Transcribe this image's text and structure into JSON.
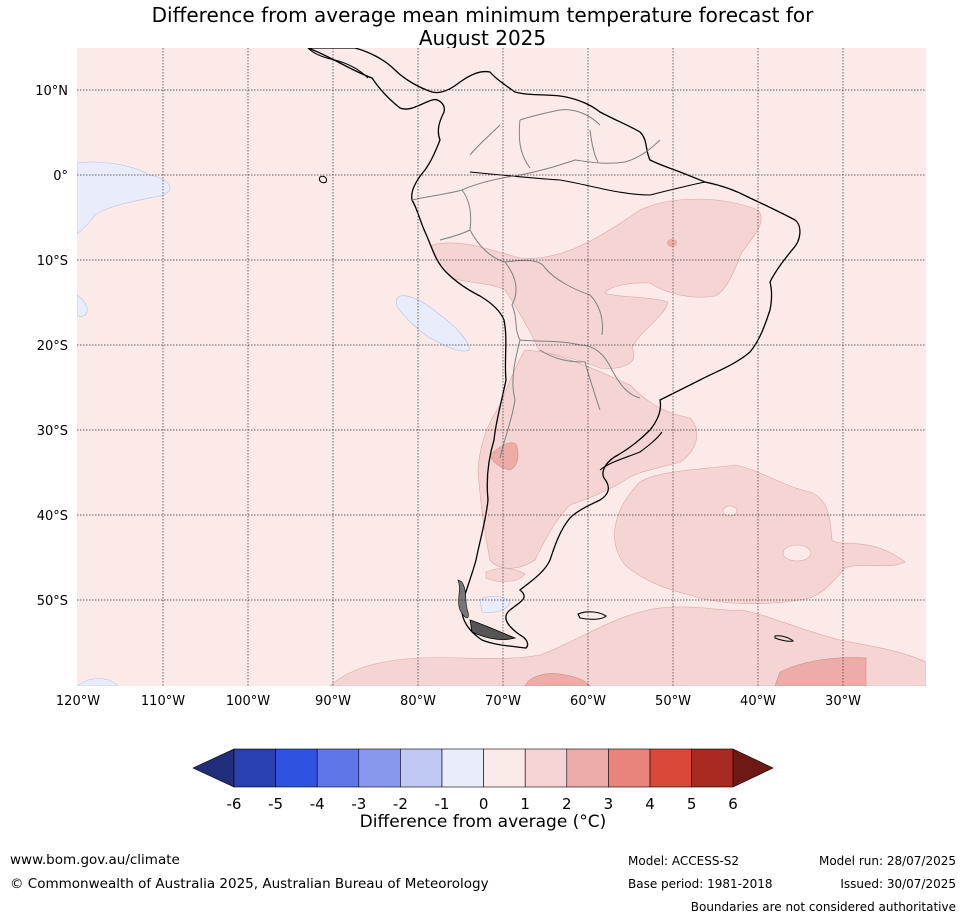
{
  "title": {
    "line1": "Difference from average mean minimum temperature forecast for",
    "line2": "August 2025"
  },
  "map": {
    "lat_labels": [
      "10°N",
      "0°",
      "10°S",
      "20°S",
      "30°S",
      "40°S",
      "50°S"
    ],
    "lon_labels": [
      "120°W",
      "110°W",
      "100°W",
      "90°W",
      "80°W",
      "70°W",
      "60°W",
      "50°W",
      "40°W",
      "30°W"
    ],
    "background_color": "#fbeae8",
    "land_outline_color": "#000000",
    "border_color": "#808080"
  },
  "colorbar": {
    "ticks": [
      "-6",
      "-5",
      "-4",
      "-3",
      "-2",
      "-1",
      "0",
      "1",
      "2",
      "3",
      "4",
      "5",
      "6"
    ],
    "colors": [
      "#1f2e7a",
      "#2a3fb0",
      "#3052e0",
      "#5f76e6",
      "#8898ee",
      "#c0c8f4",
      "#e8ecfb",
      "#fbeae8",
      "#f5d5d3",
      "#edaca8",
      "#e8847c",
      "#d9483b",
      "#a82a20",
      "#6e1a14"
    ],
    "label": "Difference from average (°C)"
  },
  "footer": {
    "website": "www.bom.gov.au/climate",
    "copyright": "© Commonwealth of Australia 2025, Australian Bureau of Meteorology",
    "model": "Model: ACCESS-S2",
    "base_period": "Base period: 1981-2018",
    "model_run": "Model run: 28/07/2025",
    "issued": "Issued: 30/07/2025",
    "disclaimer": "Boundaries are not considered authoritative"
  }
}
